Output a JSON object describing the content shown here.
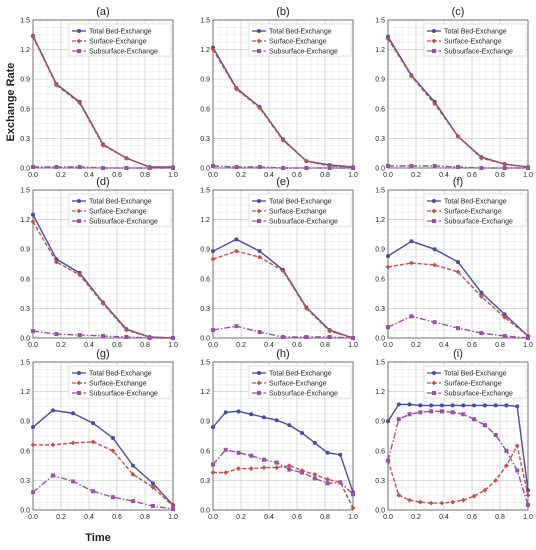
{
  "figure": {
    "ylabel": "Exchange Rate",
    "xlabel": "Time"
  },
  "chart_data": [
    {
      "type": "line",
      "title": "(a)",
      "x": [
        0,
        0.167,
        0.333,
        0.5,
        0.667,
        0.833,
        1.0
      ],
      "xticks": [
        "0.0",
        "0.2",
        "0.4",
        "0.6",
        "0.8",
        "1.0"
      ],
      "yticks": [
        "0.0",
        "0.3",
        "0.6",
        "0.9",
        "1.2",
        "1.5"
      ],
      "xlim": [
        0,
        1
      ],
      "ylim": [
        0,
        1.5
      ],
      "grid": true,
      "legend": "top-right",
      "series": [
        {
          "name": "Total Bed-Exchange",
          "color": "#4a4a9e",
          "values": [
            1.34,
            0.85,
            0.67,
            0.24,
            0.1,
            0.01,
            0.01
          ]
        },
        {
          "name": "Surface-Exchange",
          "color": "#c0504d",
          "values": [
            1.33,
            0.84,
            0.66,
            0.23,
            0.1,
            0.01,
            0.01
          ]
        },
        {
          "name": "Subsurface-Exchange",
          "color": "#9b4fa0",
          "values": [
            0.01,
            0.01,
            0.01,
            0.0,
            0.0,
            0.0,
            0.0
          ]
        }
      ]
    },
    {
      "type": "line",
      "title": "(b)",
      "x": [
        0,
        0.167,
        0.333,
        0.5,
        0.667,
        0.833,
        1.0
      ],
      "xticks": [
        "0.0",
        "0.2",
        "0.4",
        "0.6",
        "0.8",
        "1.0"
      ],
      "yticks": [
        "0.0",
        "0.3",
        "0.6",
        "0.9",
        "1.2",
        "1.5"
      ],
      "xlim": [
        0,
        1
      ],
      "ylim": [
        0,
        1.5
      ],
      "grid": true,
      "legend": "top-right",
      "series": [
        {
          "name": "Total Bed-Exchange",
          "color": "#4a4a9e",
          "values": [
            1.22,
            0.81,
            0.62,
            0.29,
            0.07,
            0.03,
            0.01
          ]
        },
        {
          "name": "Surface-Exchange",
          "color": "#c0504d",
          "values": [
            1.2,
            0.8,
            0.61,
            0.28,
            0.07,
            0.02,
            0.01
          ]
        },
        {
          "name": "Subsurface-Exchange",
          "color": "#9b4fa0",
          "values": [
            0.02,
            0.01,
            0.01,
            0.0,
            0.0,
            0.0,
            0.0
          ]
        }
      ]
    },
    {
      "type": "line",
      "title": "(c)",
      "x": [
        0,
        0.167,
        0.333,
        0.5,
        0.667,
        0.833,
        1.0
      ],
      "xticks": [
        "0.0",
        "0.2",
        "0.4",
        "0.6",
        "0.8",
        "1.0"
      ],
      "yticks": [
        "0.0",
        "0.3",
        "0.6",
        "0.9",
        "1.2",
        "1.5"
      ],
      "xlim": [
        0,
        1
      ],
      "ylim": [
        0,
        1.5
      ],
      "grid": true,
      "legend": "top-right",
      "series": [
        {
          "name": "Total Bed-Exchange",
          "color": "#4a4a9e",
          "values": [
            1.33,
            0.94,
            0.67,
            0.32,
            0.11,
            0.04,
            0.01
          ]
        },
        {
          "name": "Surface-Exchange",
          "color": "#c0504d",
          "values": [
            1.31,
            0.93,
            0.65,
            0.32,
            0.1,
            0.04,
            0.01
          ]
        },
        {
          "name": "Subsurface-Exchange",
          "color": "#9b4fa0",
          "values": [
            0.02,
            0.02,
            0.02,
            0.01,
            0.0,
            0.0,
            0.0
          ]
        }
      ]
    },
    {
      "type": "line",
      "title": "(d)",
      "x": [
        0,
        0.167,
        0.333,
        0.5,
        0.667,
        0.833,
        1.0
      ],
      "xticks": [
        "0.0",
        "0.2",
        "0.4",
        "0.6",
        "0.8",
        "1.0"
      ],
      "yticks": [
        "0.0",
        "0.3",
        "0.6",
        "0.9",
        "1.2",
        "1.5"
      ],
      "xlim": [
        0,
        1
      ],
      "ylim": [
        0,
        1.5
      ],
      "grid": true,
      "legend": "top-right",
      "series": [
        {
          "name": "Total Bed-Exchange",
          "color": "#4a4a9e",
          "values": [
            1.25,
            0.8,
            0.66,
            0.36,
            0.09,
            0.01,
            0.0
          ]
        },
        {
          "name": "Surface-Exchange",
          "color": "#c0504d",
          "values": [
            1.18,
            0.77,
            0.64,
            0.35,
            0.08,
            0.01,
            0.0
          ]
        },
        {
          "name": "Subsurface-Exchange",
          "color": "#9b4fa0",
          "values": [
            0.07,
            0.04,
            0.03,
            0.02,
            0.01,
            0.0,
            0.0
          ]
        }
      ]
    },
    {
      "type": "line",
      "title": "(e)",
      "x": [
        0,
        0.167,
        0.333,
        0.5,
        0.667,
        0.833,
        1.0
      ],
      "xticks": [
        "0.0",
        "0.2",
        "0.4",
        "0.6",
        "0.8",
        "1.0"
      ],
      "yticks": [
        "0.0",
        "0.3",
        "0.6",
        "0.9",
        "1.2",
        "1.5"
      ],
      "xlim": [
        0,
        1
      ],
      "ylim": [
        0,
        1.5
      ],
      "grid": true,
      "legend": "top-right",
      "series": [
        {
          "name": "Total Bed-Exchange",
          "color": "#4a4a9e",
          "values": [
            0.88,
            1.0,
            0.88,
            0.69,
            0.31,
            0.08,
            0.0
          ]
        },
        {
          "name": "Surface-Exchange",
          "color": "#c0504d",
          "values": [
            0.8,
            0.88,
            0.82,
            0.68,
            0.3,
            0.07,
            0.0
          ]
        },
        {
          "name": "Subsurface-Exchange",
          "color": "#9b4fa0",
          "values": [
            0.08,
            0.12,
            0.06,
            0.01,
            0.01,
            0.01,
            0.0
          ]
        }
      ]
    },
    {
      "type": "line",
      "title": "(f)",
      "x": [
        0,
        0.167,
        0.333,
        0.5,
        0.667,
        0.833,
        1.0
      ],
      "xticks": [
        "0.0",
        "0.2",
        "0.4",
        "0.6",
        "0.8",
        "1.0"
      ],
      "yticks": [
        "0.0",
        "0.3",
        "0.6",
        "0.9",
        "1.2",
        "1.5"
      ],
      "xlim": [
        0,
        1
      ],
      "ylim": [
        0,
        1.5
      ],
      "grid": true,
      "legend": "top-right",
      "series": [
        {
          "name": "Total Bed-Exchange",
          "color": "#4a4a9e",
          "values": [
            0.83,
            0.98,
            0.9,
            0.77,
            0.46,
            0.24,
            0.02
          ]
        },
        {
          "name": "Surface-Exchange",
          "color": "#c0504d",
          "values": [
            0.72,
            0.76,
            0.74,
            0.67,
            0.42,
            0.21,
            0.02
          ]
        },
        {
          "name": "Subsurface-Exchange",
          "color": "#9b4fa0",
          "values": [
            0.11,
            0.22,
            0.16,
            0.1,
            0.05,
            0.02,
            0.0
          ]
        }
      ]
    },
    {
      "type": "line",
      "title": "(g)",
      "x": [
        0,
        0.143,
        0.286,
        0.429,
        0.571,
        0.714,
        0.857,
        1.0
      ],
      "xticks": [
        "0.0",
        "0.2",
        "0.4",
        "0.6",
        "0.8",
        "1.0"
      ],
      "yticks": [
        "0.0",
        "0.3",
        "0.6",
        "0.9",
        "1.2",
        "1.5"
      ],
      "xlim": [
        0,
        1
      ],
      "ylim": [
        0,
        1.5
      ],
      "grid": true,
      "legend": "top-right",
      "series": [
        {
          "name": "Total Bed-Exchange",
          "color": "#4a4a9e",
          "values": [
            0.84,
            1.01,
            0.98,
            0.88,
            0.73,
            0.45,
            0.27,
            0.05
          ]
        },
        {
          "name": "Surface-Exchange",
          "color": "#c0504d",
          "values": [
            0.66,
            0.66,
            0.68,
            0.69,
            0.6,
            0.36,
            0.23,
            0.04
          ]
        },
        {
          "name": "Subsurface-Exchange",
          "color": "#9b4fa0",
          "values": [
            0.18,
            0.35,
            0.29,
            0.19,
            0.13,
            0.09,
            0.04,
            0.01
          ]
        }
      ]
    },
    {
      "type": "line",
      "title": "(h)",
      "x": [
        0,
        0.091,
        0.182,
        0.273,
        0.364,
        0.455,
        0.545,
        0.636,
        0.727,
        0.818,
        0.909,
        1.0
      ],
      "xticks": [
        "0.0",
        "0.2",
        "0.4",
        "0.6",
        "0.8",
        "1.0"
      ],
      "yticks": [
        "0.0",
        "0.3",
        "0.6",
        "0.9",
        "1.2",
        "1.5"
      ],
      "xlim": [
        0,
        1
      ],
      "ylim": [
        0,
        1.5
      ],
      "grid": true,
      "legend": "top-right",
      "series": [
        {
          "name": "Total Bed-Exchange",
          "color": "#4a4a9e",
          "values": [
            0.84,
            0.99,
            1.0,
            0.97,
            0.94,
            0.91,
            0.86,
            0.78,
            0.68,
            0.58,
            0.56,
            0.18
          ]
        },
        {
          "name": "Surface-Exchange",
          "color": "#c0504d",
          "values": [
            0.38,
            0.38,
            0.42,
            0.42,
            0.43,
            0.43,
            0.45,
            0.4,
            0.36,
            0.31,
            0.28,
            0.02
          ]
        },
        {
          "name": "Subsurface-Exchange",
          "color": "#9b4fa0",
          "values": [
            0.46,
            0.61,
            0.58,
            0.55,
            0.51,
            0.48,
            0.41,
            0.38,
            0.32,
            0.27,
            0.28,
            0.16
          ]
        }
      ]
    },
    {
      "type": "line",
      "title": "(i)",
      "x": [
        0,
        0.077,
        0.154,
        0.231,
        0.308,
        0.385,
        0.462,
        0.538,
        0.615,
        0.692,
        0.769,
        0.846,
        0.923,
        1.0
      ],
      "xticks": [
        "0.0",
        "0.2",
        "0.4",
        "0.6",
        "0.8",
        "1.0"
      ],
      "yticks": [
        "0.0",
        "0.3",
        "0.6",
        "0.9",
        "1.2",
        "1.5"
      ],
      "xlim": [
        0,
        1
      ],
      "ylim": [
        0,
        1.5
      ],
      "grid": true,
      "legend": "top-right",
      "series": [
        {
          "name": "Total Bed-Exchange",
          "color": "#4a4a9e",
          "values": [
            0.9,
            1.07,
            1.07,
            1.06,
            1.06,
            1.06,
            1.06,
            1.06,
            1.06,
            1.06,
            1.06,
            1.06,
            1.05,
            0.2
          ]
        },
        {
          "name": "Surface-Exchange",
          "color": "#c0504d",
          "values": [
            0.5,
            0.15,
            0.1,
            0.08,
            0.07,
            0.07,
            0.08,
            0.1,
            0.14,
            0.2,
            0.3,
            0.45,
            0.65,
            0.15
          ]
        },
        {
          "name": "Subsurface-Exchange",
          "color": "#9b4fa0",
          "values": [
            0.5,
            0.92,
            0.97,
            0.99,
            1.0,
            1.0,
            0.99,
            0.97,
            0.92,
            0.86,
            0.76,
            0.6,
            0.4,
            0.05
          ]
        }
      ]
    }
  ]
}
